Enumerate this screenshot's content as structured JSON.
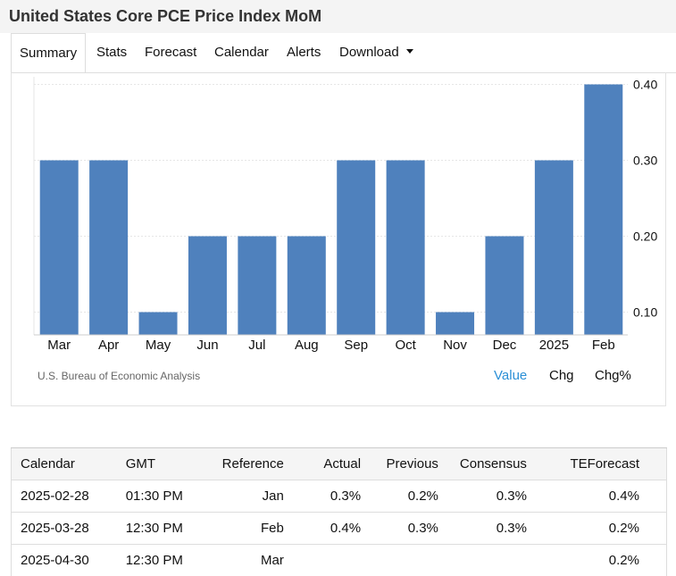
{
  "header": {
    "title": "United States Core PCE Price Index MoM"
  },
  "tabs": [
    {
      "label": "Summary"
    },
    {
      "label": "Stats"
    },
    {
      "label": "Forecast"
    },
    {
      "label": "Calendar"
    },
    {
      "label": "Alerts"
    },
    {
      "label": "Download"
    }
  ],
  "chart_data": {
    "type": "bar",
    "title": "",
    "categories": [
      "Mar",
      "Apr",
      "May",
      "Jun",
      "Jul",
      "Aug",
      "Sep",
      "Oct",
      "Nov",
      "Dec",
      "2025",
      "Feb"
    ],
    "values": [
      0.3,
      0.3,
      0.1,
      0.2,
      0.2,
      0.2,
      0.3,
      0.3,
      0.1,
      0.2,
      0.3,
      0.4
    ],
    "yticks": [
      "0.40",
      "0.30",
      "0.20",
      "0.10"
    ],
    "ylim": [
      0.07,
      0.41
    ],
    "bar_color": "#4f81bd",
    "grid": true
  },
  "chart_footer": {
    "source": "U.S. Bureau of Economic Analysis",
    "modes": [
      {
        "label": "Value"
      },
      {
        "label": "Chg"
      },
      {
        "label": "Chg%"
      }
    ],
    "active_color": "#2a8fd6"
  },
  "calendar": {
    "headers": [
      "Calendar",
      "GMT",
      "Reference",
      "Actual",
      "Previous",
      "Consensus",
      "TEForecast"
    ],
    "rows": [
      [
        "2025-02-28",
        "01:30 PM",
        "Jan",
        "0.3%",
        "0.2%",
        "0.3%",
        "0.4%"
      ],
      [
        "2025-03-28",
        "12:30 PM",
        "Feb",
        "0.4%",
        "0.3%",
        "0.3%",
        "0.2%"
      ],
      [
        "2025-04-30",
        "12:30 PM",
        "Mar",
        "",
        "",
        "",
        "0.2%"
      ]
    ]
  }
}
